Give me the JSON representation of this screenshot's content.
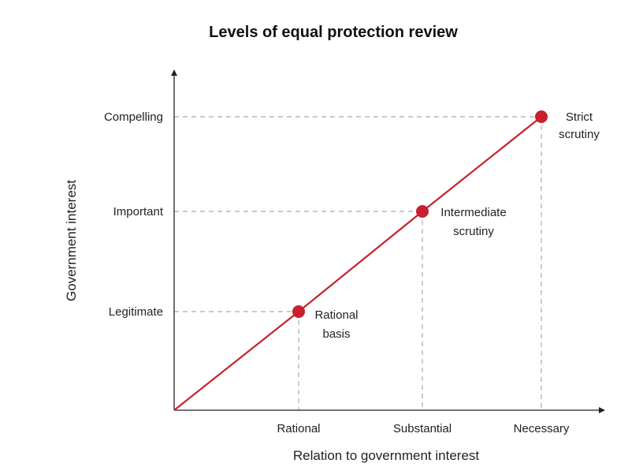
{
  "chart_data": {
    "type": "line",
    "title": "Levels of equal protection review",
    "xlabel": "Relation to government interest",
    "ylabel": "Government interest",
    "x_categories": [
      "Rational",
      "Substantial",
      "Necessary"
    ],
    "y_categories": [
      "Legitimate",
      "Important",
      "Compelling"
    ],
    "points": [
      {
        "x": "Rational",
        "y": "Legitimate",
        "label": [
          "Rational",
          "basis"
        ]
      },
      {
        "x": "Substantial",
        "y": "Important",
        "label": [
          "Intermediate",
          "scrutiny"
        ]
      },
      {
        "x": "Necessary",
        "y": "Compelling",
        "label": [
          "Strict",
          "scrutiny"
        ]
      }
    ],
    "line_from_origin": true,
    "guide_lines": "dashed",
    "colors": {
      "line": "#c8202f",
      "point": "#c8202f",
      "guide": "#aaaaaa",
      "axis": "#222222"
    }
  }
}
